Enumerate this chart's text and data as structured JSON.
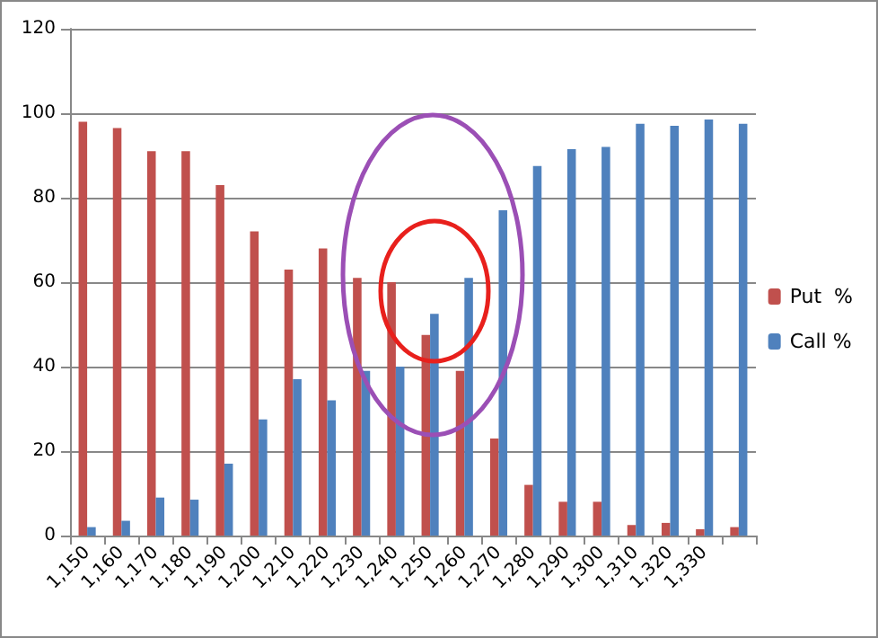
{
  "chart_data": {
    "type": "bar",
    "categories": [
      "1,150",
      "1,160",
      "1,170",
      "1,180",
      "1,190",
      "1,200",
      "1,210",
      "1,220",
      "1,230",
      "1,240",
      "1,250",
      "1,260",
      "1,270",
      "1,280",
      "1,290",
      "1,300",
      "1,310",
      "1,320",
      "1,330",
      null
    ],
    "series": [
      {
        "name": "Put  %",
        "color": "#c0504d",
        "values": [
          98,
          96.5,
          91,
          91,
          83,
          72,
          63,
          68,
          61,
          60,
          47.5,
          39,
          23,
          12,
          8,
          8,
          2.5,
          3,
          1.5,
          2
        ]
      },
      {
        "name": "Call %",
        "color": "#4f81bd",
        "values": [
          2,
          3.5,
          9,
          8.5,
          17,
          27.5,
          37,
          32,
          39,
          40,
          52.5,
          61,
          77,
          87.5,
          91.5,
          92,
          97.5,
          97,
          98.5,
          97.5
        ]
      }
    ],
    "ylim": [
      0,
      120
    ],
    "yticks": [
      0,
      20,
      40,
      60,
      80,
      100,
      120
    ],
    "grid": "y",
    "legend": "right"
  }
}
